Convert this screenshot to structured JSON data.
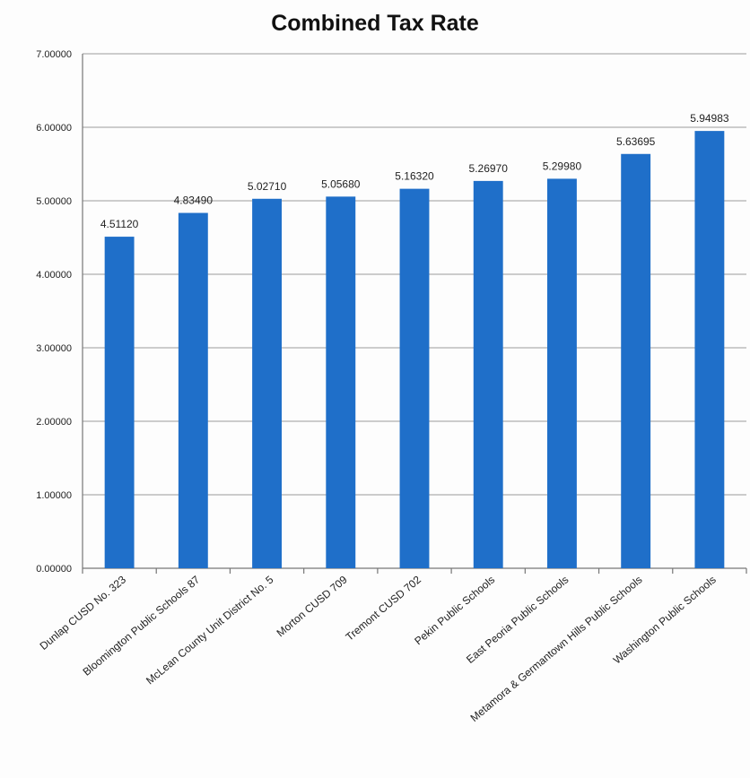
{
  "chart_data": {
    "type": "bar",
    "title": "Combined Tax Rate",
    "xlabel": "",
    "ylabel": "",
    "ylim": [
      0,
      7
    ],
    "yticks": [
      0,
      1,
      2,
      3,
      4,
      5,
      6,
      7
    ],
    "ytick_labels": [
      "0.00000",
      "1.00000",
      "2.00000",
      "3.00000",
      "4.00000",
      "5.00000",
      "6.00000",
      "7.00000"
    ],
    "grid": true,
    "legend": "none",
    "bar_color": "#1f6fc9",
    "categories": [
      "Dunlap CUSD No. 323",
      "Bloomington Public Schools 87",
      "McLean County Unit District No. 5",
      "Morton CUSD 709",
      "Tremont CUSD 702",
      "Pekin Public Schools",
      "East Peoria Public Schools",
      "Metamora & Germantown Hills Public Schools",
      "Washington Public Schools"
    ],
    "values": [
      4.5112,
      4.8349,
      5.0271,
      5.0568,
      5.1632,
      5.2697,
      5.2998,
      5.63695,
      5.94983
    ],
    "data_labels": [
      "4.51120",
      "4.83490",
      "5.02710",
      "5.05680",
      "5.16320",
      "5.26970",
      "5.29980",
      "5.63695",
      "5.94983"
    ]
  }
}
